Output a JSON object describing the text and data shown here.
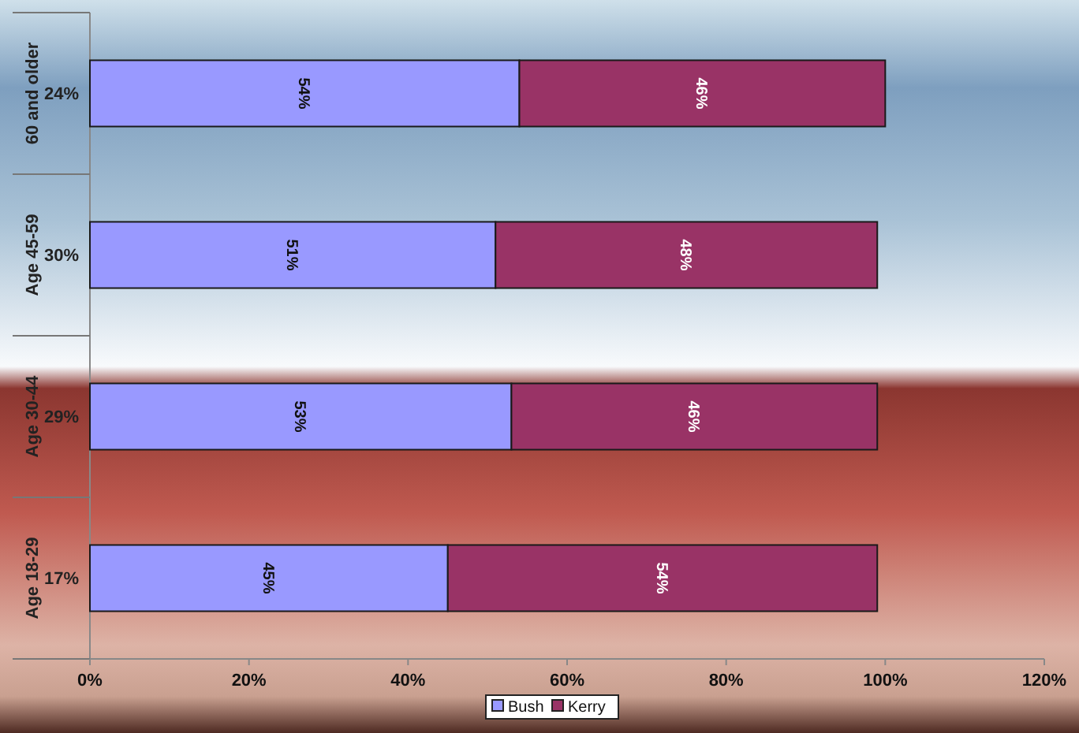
{
  "chart_data": {
    "type": "bar",
    "orientation": "horizontal",
    "stacked": true,
    "categories": [
      "60 and older",
      "Age 45-59",
      "Age 30-44",
      "Age 18-29"
    ],
    "series": [
      {
        "name": "Bush",
        "color": "#9999ff",
        "values": [
          54,
          51,
          53,
          45
        ],
        "value_labels": [
          "54%",
          "51%",
          "53%",
          "45%"
        ]
      },
      {
        "name": "Kerry",
        "color": "#993366",
        "values": [
          46,
          48,
          46,
          54
        ],
        "value_labels": [
          "46%",
          "48%",
          "46%",
          "54%"
        ]
      }
    ],
    "xlim": [
      0,
      120
    ],
    "xticks": [
      {
        "value": 0,
        "label": "0%"
      },
      {
        "value": 20,
        "label": "20%"
      },
      {
        "value": 40,
        "label": "40%"
      },
      {
        "value": 60,
        "label": "60%"
      },
      {
        "value": 80,
        "label": "80%"
      },
      {
        "value": 100,
        "label": "100%"
      },
      {
        "value": 120,
        "label": "120%"
      }
    ],
    "annotations": [
      "24%",
      "30%",
      "29%",
      "17%"
    ],
    "legend": "bottom"
  }
}
